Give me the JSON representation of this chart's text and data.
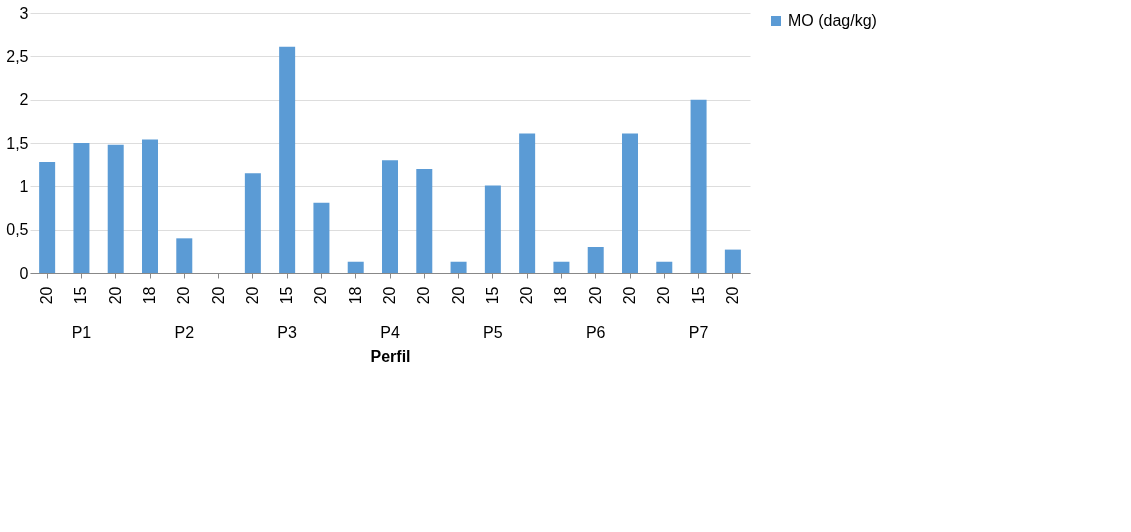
{
  "chart_data": {
    "type": "bar",
    "xlabel": "Perfil",
    "categories": [
      "20",
      "15",
      "20",
      "18",
      "20",
      "20",
      "20",
      "15",
      "20",
      "18",
      "20",
      "20",
      "20",
      "15",
      "20",
      "18",
      "20",
      "20",
      "20",
      "15",
      "20"
    ],
    "annotations": [
      "P1",
      "P2",
      "P3",
      "P4",
      "P5",
      "P6",
      "P7"
    ],
    "series": [
      {
        "name": "MO (dag/kg)",
        "color": "#5b9bd5",
        "values": [
          1.28,
          1.5,
          1.48,
          1.54,
          0.4,
          null,
          1.15,
          2.61,
          0.81,
          0.13,
          1.3,
          1.2,
          0.13,
          1.01,
          1.61,
          0.13,
          0.3,
          1.61,
          0.13,
          2.0,
          0.27
        ]
      }
    ],
    "ylim": [
      0,
      3
    ],
    "yticks": [
      0,
      {
        "value": 0.5,
        "label": "0,5"
      },
      1,
      {
        "value": 1.5,
        "label": "1,5"
      },
      2,
      {
        "value": 2.5,
        "label": "2,5"
      },
      3
    ],
    "grid": "y",
    "legend": "right"
  }
}
